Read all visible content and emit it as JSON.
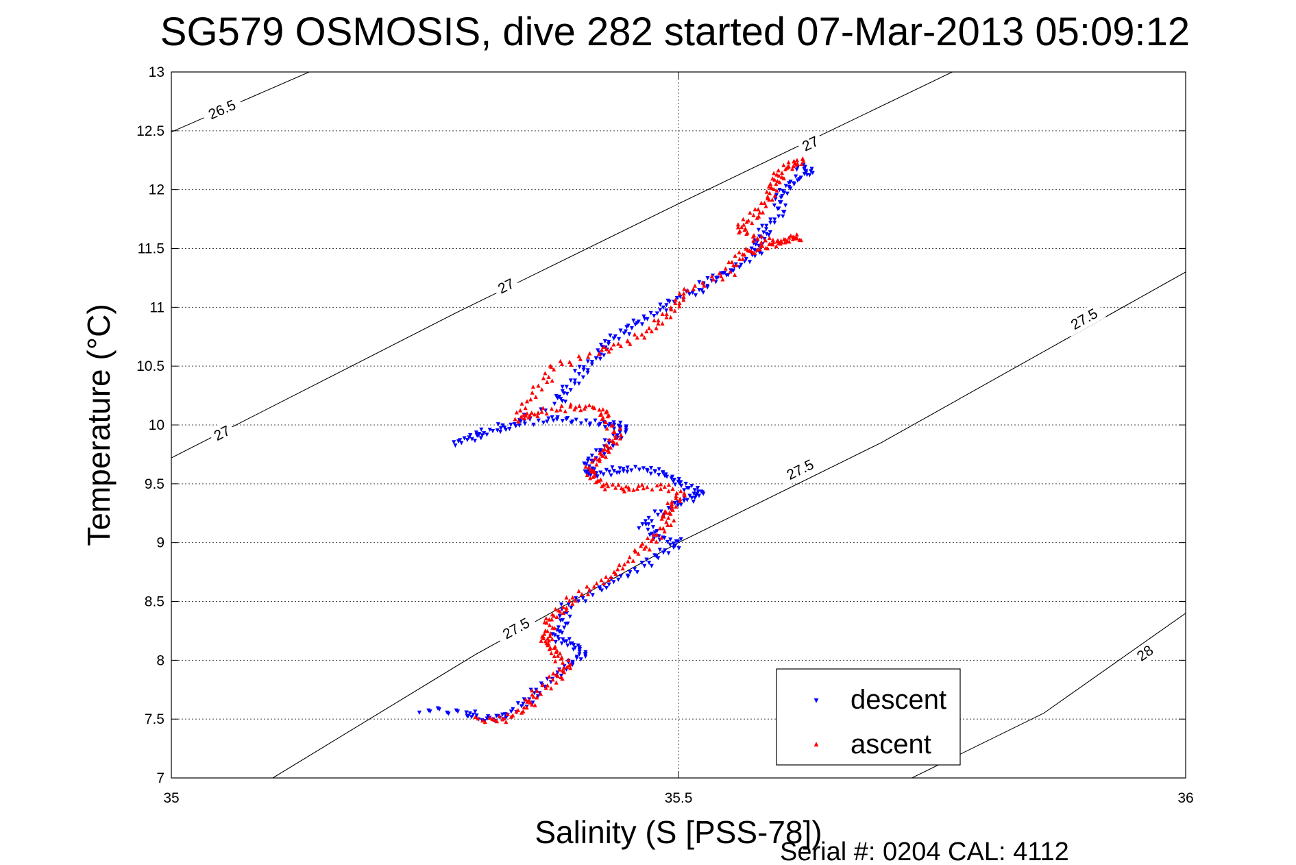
{
  "chart_data": {
    "type": "scatter",
    "title": "SG579 OSMOSIS, dive 282 started 07-Mar-2013 05:09:12",
    "xlabel": "Salinity (S [PSS-78])",
    "ylabel": "Temperature (°C)",
    "footer": "Serial #: 0204  CAL: 4112",
    "xlim": [
      35,
      36
    ],
    "ylim": [
      7,
      13
    ],
    "xticks": [
      "35",
      "35.5",
      "36"
    ],
    "yticks": [
      "7",
      "7.5",
      "8",
      "8.5",
      "9",
      "9.5",
      "10",
      "10.5",
      "11",
      "11.5",
      "12",
      "12.5",
      "13"
    ],
    "grid": true,
    "legend_position": "bottom-right",
    "density_contours": [
      {
        "level": "26.5",
        "points": [
          [
            35.0,
            12.49
          ],
          [
            35.136,
            13.0
          ]
        ],
        "labels": [
          [
            35.05,
            12.68
          ]
        ]
      },
      {
        "level": "27",
        "points": [
          [
            35.0,
            9.72
          ],
          [
            35.28,
            10.95
          ],
          [
            35.5,
            11.88
          ],
          [
            35.77,
            13.0
          ]
        ],
        "labels": [
          [
            35.05,
            9.93
          ],
          [
            35.33,
            11.18
          ],
          [
            35.63,
            12.39
          ]
        ]
      },
      {
        "level": "27.5",
        "points": [
          [
            35.1,
            7.0
          ],
          [
            35.3,
            8.05
          ],
          [
            35.5,
            9.0
          ],
          [
            35.7,
            9.85
          ],
          [
            36.0,
            11.3
          ]
        ],
        "labels": [
          [
            35.34,
            8.27
          ],
          [
            35.62,
            9.62
          ],
          [
            35.9,
            10.9
          ]
        ]
      },
      {
        "level": "28",
        "points": [
          [
            35.73,
            7.0
          ],
          [
            35.86,
            7.55
          ],
          [
            36.0,
            8.4
          ]
        ],
        "labels": [
          [
            35.96,
            8.06
          ]
        ]
      }
    ],
    "series": [
      {
        "name": "descent",
        "color": "#0000ff",
        "marker": "triangle-down",
        "path": [
          [
            35.25,
            7.58
          ],
          [
            35.29,
            7.55
          ],
          [
            35.31,
            7.5
          ],
          [
            35.33,
            7.52
          ],
          [
            35.35,
            7.65
          ],
          [
            35.37,
            7.8
          ],
          [
            35.39,
            7.95
          ],
          [
            35.405,
            8.05
          ],
          [
            35.4,
            8.12
          ],
          [
            35.38,
            8.18
          ],
          [
            35.385,
            8.28
          ],
          [
            35.39,
            8.45
          ],
          [
            35.42,
            8.6
          ],
          [
            35.45,
            8.73
          ],
          [
            35.48,
            8.88
          ],
          [
            35.5,
            9.0
          ],
          [
            35.48,
            9.05
          ],
          [
            35.465,
            9.15
          ],
          [
            35.49,
            9.3
          ],
          [
            35.515,
            9.38
          ],
          [
            35.52,
            9.44
          ],
          [
            35.5,
            9.5
          ],
          [
            35.49,
            9.58
          ],
          [
            35.465,
            9.62
          ],
          [
            35.44,
            9.62
          ],
          [
            35.42,
            9.58
          ],
          [
            35.41,
            9.6
          ],
          [
            35.415,
            9.72
          ],
          [
            35.43,
            9.82
          ],
          [
            35.445,
            9.95
          ],
          [
            35.44,
            10.0
          ],
          [
            35.41,
            10.02
          ],
          [
            35.38,
            10.05
          ],
          [
            35.35,
            10.02
          ],
          [
            35.32,
            9.96
          ],
          [
            35.3,
            9.9
          ],
          [
            35.28,
            9.85
          ],
          [
            35.38,
            10.18
          ],
          [
            35.39,
            10.3
          ],
          [
            35.405,
            10.45
          ],
          [
            35.42,
            10.58
          ],
          [
            35.43,
            10.7
          ],
          [
            35.45,
            10.82
          ],
          [
            35.47,
            10.92
          ],
          [
            35.495,
            11.05
          ],
          [
            35.52,
            11.15
          ],
          [
            35.535,
            11.25
          ],
          [
            35.555,
            11.32
          ],
          [
            35.575,
            11.45
          ],
          [
            35.58,
            11.55
          ],
          [
            35.585,
            11.65
          ],
          [
            35.6,
            11.8
          ],
          [
            35.6,
            11.95
          ],
          [
            35.61,
            12.05
          ],
          [
            35.63,
            12.15
          ],
          [
            35.62,
            12.2
          ]
        ]
      },
      {
        "name": "ascent",
        "color": "#ff0000",
        "marker": "triangle-up",
        "path": [
          [
            35.3,
            7.5
          ],
          [
            35.33,
            7.5
          ],
          [
            35.35,
            7.6
          ],
          [
            35.36,
            7.72
          ],
          [
            35.38,
            7.85
          ],
          [
            35.39,
            7.95
          ],
          [
            35.38,
            8.05
          ],
          [
            35.37,
            8.15
          ],
          [
            35.37,
            8.22
          ],
          [
            35.375,
            8.35
          ],
          [
            35.385,
            8.45
          ],
          [
            35.41,
            8.6
          ],
          [
            35.44,
            8.75
          ],
          [
            35.46,
            8.93
          ],
          [
            35.48,
            9.05
          ],
          [
            35.49,
            9.2
          ],
          [
            35.49,
            9.3
          ],
          [
            35.505,
            9.42
          ],
          [
            35.48,
            9.48
          ],
          [
            35.45,
            9.46
          ],
          [
            35.43,
            9.48
          ],
          [
            35.41,
            9.58
          ],
          [
            35.42,
            9.7
          ],
          [
            35.43,
            9.8
          ],
          [
            35.44,
            9.9
          ],
          [
            35.43,
            10.05
          ],
          [
            35.42,
            10.15
          ],
          [
            35.39,
            10.15
          ],
          [
            35.36,
            10.1
          ],
          [
            35.34,
            10.05
          ],
          [
            35.36,
            10.3
          ],
          [
            35.38,
            10.5
          ],
          [
            35.42,
            10.62
          ],
          [
            35.45,
            10.7
          ],
          [
            35.48,
            10.85
          ],
          [
            35.495,
            11.0
          ],
          [
            35.51,
            11.15
          ],
          [
            35.55,
            11.3
          ],
          [
            35.56,
            11.45
          ],
          [
            35.58,
            11.5
          ],
          [
            35.6,
            11.55
          ],
          [
            35.62,
            11.6
          ],
          [
            35.595,
            11.55
          ],
          [
            35.57,
            11.6
          ],
          [
            35.56,
            11.7
          ],
          [
            35.58,
            11.8
          ],
          [
            35.59,
            11.95
          ],
          [
            35.595,
            12.05
          ],
          [
            35.6,
            12.15
          ],
          [
            35.62,
            12.25
          ],
          [
            35.61,
            12.2
          ]
        ]
      }
    ]
  }
}
